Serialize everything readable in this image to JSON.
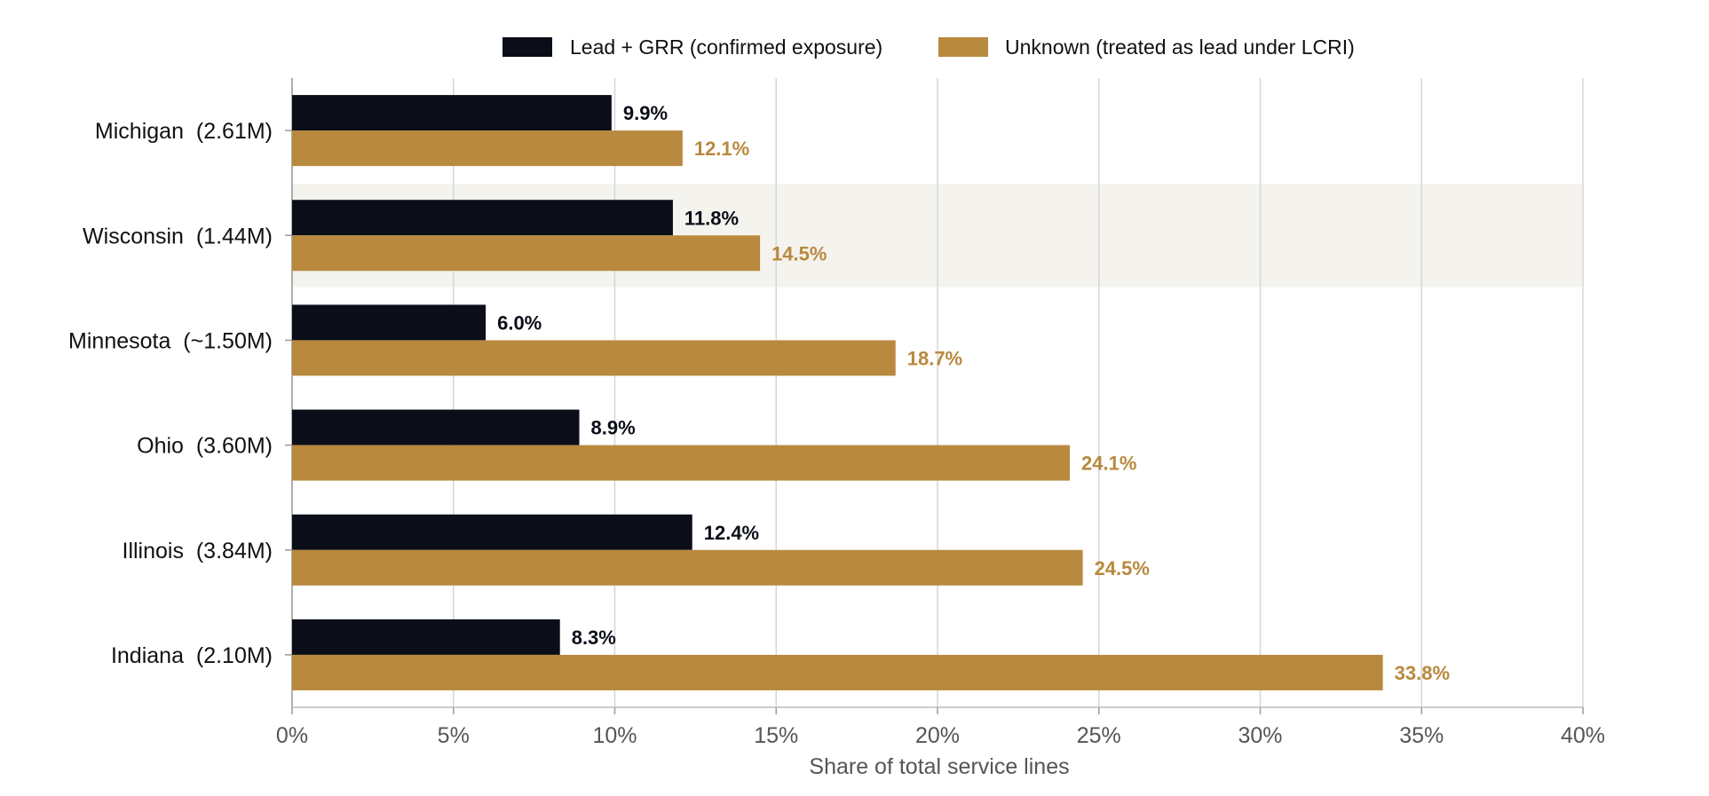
{
  "chart_data": {
    "type": "bar",
    "orientation": "horizontal",
    "categories": [
      "Michigan  (2.61M)",
      "Wisconsin  (1.44M)",
      "Minnesota  (~1.50M)",
      "Ohio  (3.60M)",
      "Illinois  (3.84M)",
      "Indiana  (2.10M)"
    ],
    "series": [
      {
        "name": "Lead + GRR (confirmed exposure)",
        "color": "#0b0e18",
        "values": [
          9.9,
          11.8,
          6.0,
          8.9,
          12.4,
          8.3
        ]
      },
      {
        "name": "Unknown (treated as lead under LCRI)",
        "color": "#b8893e",
        "values": [
          12.1,
          14.5,
          18.7,
          24.1,
          24.5,
          33.8
        ]
      }
    ],
    "data_labels": [
      [
        "9.9%",
        "11.8%",
        "6.0%",
        "8.9%",
        "12.4%",
        "8.3%"
      ],
      [
        "12.1%",
        "14.5%",
        "18.7%",
        "24.1%",
        "24.5%",
        "33.8%"
      ]
    ],
    "highlighted_category": "Wisconsin  (1.44M)",
    "highlight_color": "#f4f3ee",
    "xlabel": "Share of total service lines",
    "ylabel": "",
    "xlim": [
      0,
      40
    ],
    "x_ticks": [
      "0%",
      "5%",
      "10%",
      "15%",
      "20%",
      "25%",
      "30%",
      "35%",
      "40%"
    ],
    "grid": "vertical",
    "legend_position": "top-center"
  }
}
